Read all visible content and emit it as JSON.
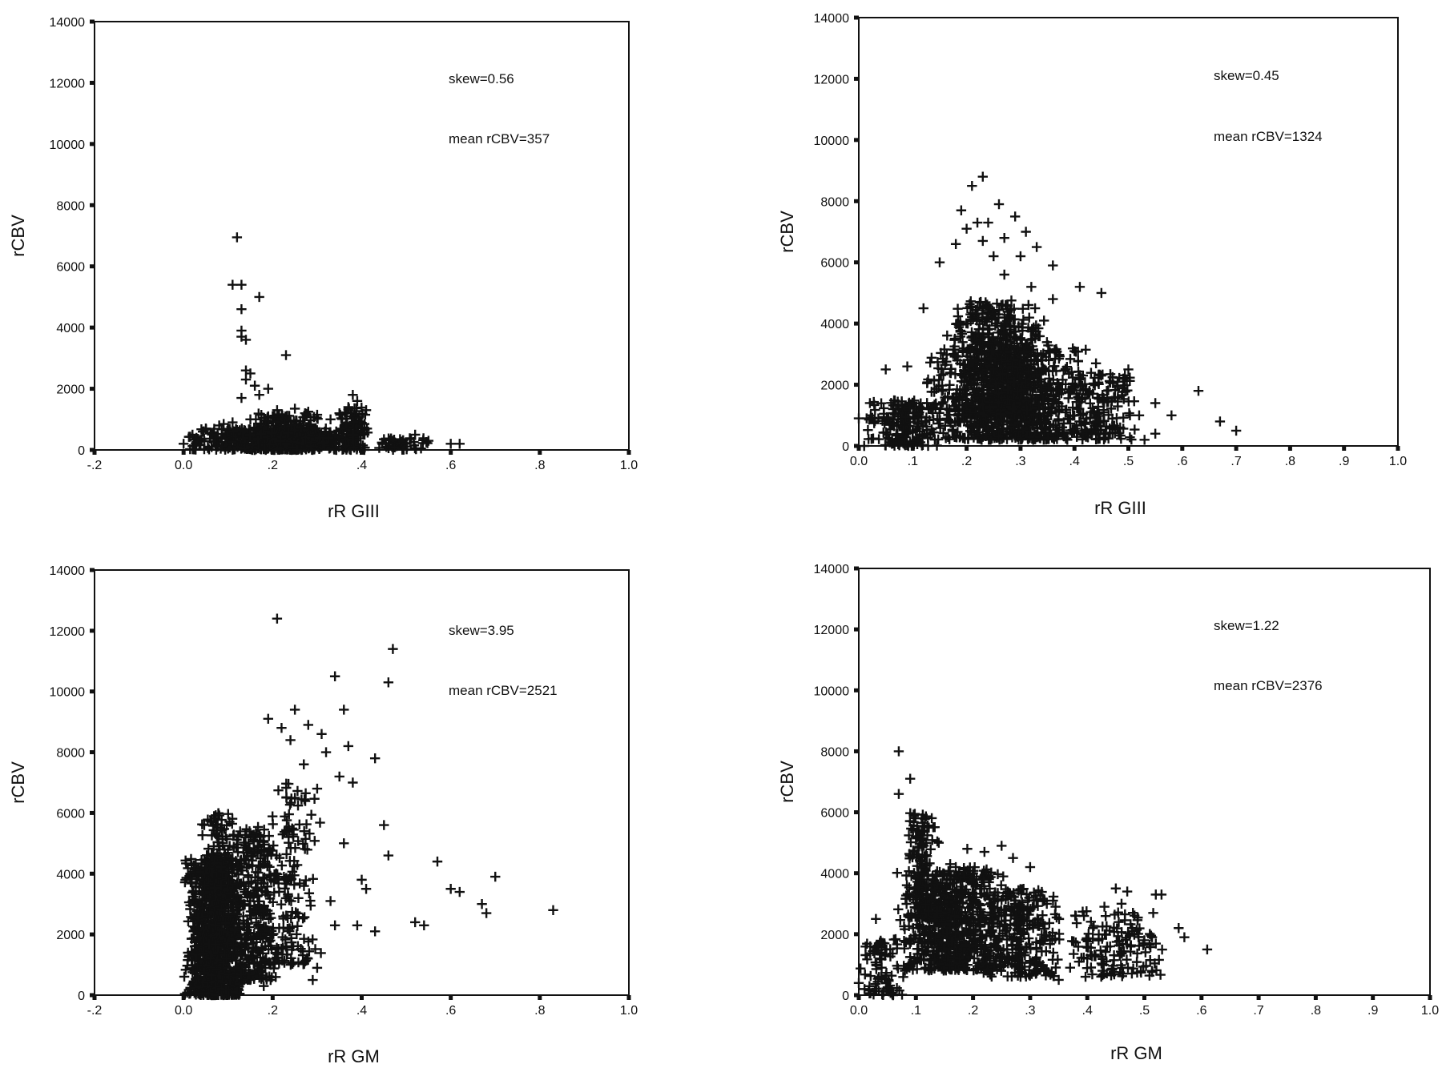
{
  "colors": {
    "ink": "#111111",
    "background": "#ffffff"
  },
  "chart_data": [
    {
      "type": "scatter",
      "marker": "plus",
      "xlabel": "rR GIII",
      "ylabel": "rCBV",
      "xlim": [
        -0.2,
        1.0
      ],
      "ylim": [
        0,
        14000
      ],
      "x_ticks": [
        "-.2",
        "0.0",
        ".2",
        ".4",
        ".6",
        ".8",
        "1.0"
      ],
      "y_ticks": [
        "0",
        "2000",
        "4000",
        "6000",
        "8000",
        "10000",
        "12000",
        "14000"
      ],
      "annotations": [
        "skew=0.56",
        "mean rCBV=357"
      ],
      "grid": false,
      "outliers": [
        [
          0.12,
          6950
        ],
        [
          0.11,
          5400
        ],
        [
          0.13,
          5400
        ],
        [
          0.17,
          5000
        ],
        [
          0.13,
          4600
        ],
        [
          0.13,
          3900
        ],
        [
          0.13,
          3700
        ],
        [
          0.14,
          3600
        ],
        [
          0.23,
          3100
        ],
        [
          0.14,
          2600
        ],
        [
          0.15,
          2500
        ],
        [
          0.14,
          2300
        ],
        [
          0.16,
          2100
        ],
        [
          0.19,
          2000
        ],
        [
          0.17,
          1800
        ],
        [
          0.13,
          1700
        ],
        [
          0.38,
          1800
        ],
        [
          0.39,
          1600
        ],
        [
          0.37,
          1400
        ],
        [
          0.41,
          1300
        ],
        [
          0.52,
          500
        ],
        [
          0.55,
          300
        ],
        [
          0.6,
          200
        ],
        [
          0.62,
          200
        ],
        [
          0.47,
          300
        ],
        [
          0.02,
          500
        ],
        [
          0.05,
          700
        ],
        [
          0.08,
          800
        ],
        [
          0.09,
          850
        ],
        [
          0.15,
          1000
        ],
        [
          0.21,
          1300
        ],
        [
          0.25,
          1350
        ],
        [
          0.3,
          1150
        ],
        [
          0.33,
          1000
        ],
        [
          0.35,
          1200
        ],
        [
          0.28,
          1250
        ],
        [
          0.45,
          350
        ],
        [
          0.0,
          200
        ],
        [
          0.11,
          900
        ],
        [
          0.2,
          1100
        ]
      ],
      "clusters": [
        {
          "x_range": [
            0.0,
            0.42
          ],
          "y_range": [
            0,
            700
          ],
          "count": 520
        },
        {
          "x_range": [
            0.14,
            0.32
          ],
          "y_range": [
            0,
            1200
          ],
          "count": 240
        },
        {
          "x_range": [
            0.34,
            0.42
          ],
          "y_range": [
            0,
            1400
          ],
          "count": 110
        },
        {
          "x_range": [
            0.42,
            0.56
          ],
          "y_range": [
            0,
            400
          ],
          "count": 45
        }
      ]
    },
    {
      "type": "scatter",
      "marker": "plus",
      "xlabel": "rR GIII",
      "ylabel": "rCBV",
      "xlim": [
        0.0,
        1.0
      ],
      "ylim": [
        0,
        14000
      ],
      "x_ticks": [
        "0.0",
        ".1",
        ".2",
        ".3",
        ".4",
        ".5",
        ".6",
        ".7",
        ".8",
        ".9",
        "1.0"
      ],
      "y_ticks": [
        "0",
        "2000",
        "4000",
        "6000",
        "8000",
        "10000",
        "12000",
        "14000"
      ],
      "annotations": [
        "skew=0.45",
        "mean rCBV=1324"
      ],
      "grid": false,
      "outliers": [
        [
          0.23,
          8800
        ],
        [
          0.21,
          8500
        ],
        [
          0.26,
          7900
        ],
        [
          0.19,
          7700
        ],
        [
          0.29,
          7500
        ],
        [
          0.22,
          7300
        ],
        [
          0.24,
          7300
        ],
        [
          0.2,
          7100
        ],
        [
          0.31,
          7000
        ],
        [
          0.23,
          6700
        ],
        [
          0.18,
          6600
        ],
        [
          0.27,
          6800
        ],
        [
          0.33,
          6500
        ],
        [
          0.15,
          6000
        ],
        [
          0.36,
          5900
        ],
        [
          0.41,
          5200
        ],
        [
          0.45,
          5000
        ],
        [
          0.3,
          6200
        ],
        [
          0.36,
          4800
        ],
        [
          0.55,
          1400
        ],
        [
          0.58,
          1000
        ],
        [
          0.63,
          1800
        ],
        [
          0.67,
          800
        ],
        [
          0.7,
          500
        ],
        [
          0.55,
          400
        ],
        [
          0.53,
          200
        ],
        [
          0.05,
          2500
        ],
        [
          0.09,
          2600
        ],
        [
          0.0,
          900
        ],
        [
          0.01,
          0
        ],
        [
          0.5,
          2500
        ],
        [
          0.48,
          2100
        ],
        [
          0.44,
          2700
        ],
        [
          0.4,
          3100
        ],
        [
          0.12,
          4500
        ],
        [
          0.27,
          5600
        ],
        [
          0.32,
          5200
        ],
        [
          0.25,
          6200
        ],
        [
          0.52,
          1000
        ],
        [
          0.46,
          1800
        ]
      ],
      "clusters": [
        {
          "x_range": [
            0.12,
            0.44
          ],
          "y_range": [
            200,
            3200
          ],
          "count": 900
        },
        {
          "x_range": [
            0.16,
            0.36
          ],
          "y_range": [
            1000,
            4800
          ],
          "count": 550
        },
        {
          "x_range": [
            0.01,
            0.16
          ],
          "y_range": [
            0,
            1500
          ],
          "count": 200
        },
        {
          "x_range": [
            0.38,
            0.52
          ],
          "y_range": [
            200,
            2400
          ],
          "count": 160
        }
      ]
    },
    {
      "type": "scatter",
      "marker": "plus",
      "xlabel": "rR GM",
      "ylabel": "rCBV",
      "xlim": [
        -0.2,
        1.0
      ],
      "ylim": [
        0,
        14000
      ],
      "x_ticks": [
        "-.2",
        "0.0",
        ".2",
        ".4",
        ".6",
        ".8",
        "1.0"
      ],
      "y_ticks": [
        "0",
        "2000",
        "4000",
        "6000",
        "8000",
        "10000",
        "12000",
        "14000"
      ],
      "annotations": [
        "skew=3.95",
        "mean rCBV=2521"
      ],
      "grid": false,
      "outliers": [
        [
          0.21,
          12400
        ],
        [
          0.47,
          11400
        ],
        [
          0.34,
          10500
        ],
        [
          0.46,
          10300
        ],
        [
          0.19,
          9100
        ],
        [
          0.25,
          9400
        ],
        [
          0.36,
          9400
        ],
        [
          0.28,
          8900
        ],
        [
          0.31,
          8600
        ],
        [
          0.22,
          8800
        ],
        [
          0.24,
          8400
        ],
        [
          0.32,
          8000
        ],
        [
          0.43,
          7800
        ],
        [
          0.37,
          8200
        ],
        [
          0.35,
          7200
        ],
        [
          0.38,
          7000
        ],
        [
          0.27,
          7600
        ],
        [
          0.3,
          6800
        ],
        [
          0.45,
          5600
        ],
        [
          0.46,
          4600
        ],
        [
          0.57,
          4400
        ],
        [
          0.6,
          3500
        ],
        [
          0.62,
          3400
        ],
        [
          0.7,
          3900
        ],
        [
          0.67,
          3000
        ],
        [
          0.68,
          2700
        ],
        [
          0.83,
          2800
        ],
        [
          0.52,
          2400
        ],
        [
          0.54,
          2300
        ],
        [
          0.4,
          3800
        ],
        [
          0.41,
          3500
        ],
        [
          0.39,
          2300
        ],
        [
          0.43,
          2100
        ],
        [
          0.34,
          2300
        ],
        [
          0.29,
          500
        ],
        [
          0.3,
          900
        ],
        [
          0.18,
          300
        ],
        [
          0.33,
          3100
        ],
        [
          0.25,
          6500
        ],
        [
          0.36,
          5000
        ]
      ],
      "clusters": [
        {
          "x_range": [
            0.0,
            0.14
          ],
          "y_range": [
            0,
            4500
          ],
          "count": 1100
        },
        {
          "x_range": [
            0.1,
            0.22
          ],
          "y_range": [
            500,
            5500
          ],
          "count": 320
        },
        {
          "x_range": [
            0.16,
            0.32
          ],
          "y_range": [
            1000,
            7000
          ],
          "count": 170
        },
        {
          "x_range": [
            0.03,
            0.12
          ],
          "y_range": [
            4000,
            6000
          ],
          "count": 90
        }
      ]
    },
    {
      "type": "scatter",
      "marker": "plus",
      "xlabel": "rR GM",
      "ylabel": "rCBV",
      "xlim": [
        0.0,
        1.0
      ],
      "ylim": [
        0,
        14000
      ],
      "x_ticks": [
        "0.0",
        ".1",
        ".2",
        ".3",
        ".4",
        ".5",
        ".6",
        ".7",
        ".8",
        ".9",
        "1.0"
      ],
      "y_ticks": [
        "0",
        "2000",
        "4000",
        "6000",
        "8000",
        "10000",
        "12000",
        "14000"
      ],
      "annotations": [
        "skew=1.22",
        "mean rCBV=2376"
      ],
      "grid": false,
      "outliers": [
        [
          0.07,
          8000
        ],
        [
          0.09,
          7100
        ],
        [
          0.07,
          6600
        ],
        [
          0.11,
          5800
        ],
        [
          0.12,
          5500
        ],
        [
          0.1,
          5200
        ],
        [
          0.14,
          5000
        ],
        [
          0.19,
          4800
        ],
        [
          0.22,
          4700
        ],
        [
          0.27,
          4500
        ],
        [
          0.3,
          4200
        ],
        [
          0.45,
          3500
        ],
        [
          0.47,
          3400
        ],
        [
          0.52,
          3300
        ],
        [
          0.53,
          3300
        ],
        [
          0.46,
          3000
        ],
        [
          0.48,
          2700
        ],
        [
          0.56,
          2200
        ],
        [
          0.57,
          1900
        ],
        [
          0.61,
          1500
        ],
        [
          0.44,
          1600
        ],
        [
          0.4,
          1200
        ],
        [
          0.37,
          900
        ],
        [
          0.35,
          500
        ],
        [
          0.0,
          400
        ],
        [
          0.01,
          200
        ],
        [
          0.03,
          2500
        ],
        [
          0.02,
          1600
        ],
        [
          0.04,
          900
        ],
        [
          0.06,
          0
        ],
        [
          0.25,
          4900
        ],
        [
          0.16,
          4300
        ],
        [
          0.2,
          4000
        ],
        [
          0.34,
          3100
        ],
        [
          0.38,
          2600
        ],
        [
          0.41,
          2200
        ],
        [
          0.5,
          1800
        ],
        [
          0.43,
          2900
        ],
        [
          0.24,
          1200
        ],
        [
          0.31,
          700
        ]
      ],
      "clusters": [
        {
          "x_range": [
            0.06,
            0.26
          ],
          "y_range": [
            800,
            4200
          ],
          "count": 700
        },
        {
          "x_range": [
            0.08,
            0.14
          ],
          "y_range": [
            2500,
            6000
          ],
          "count": 160
        },
        {
          "x_range": [
            0.2,
            0.36
          ],
          "y_range": [
            600,
            3500
          ],
          "count": 300
        },
        {
          "x_range": [
            0.36,
            0.54
          ],
          "y_range": [
            600,
            2800
          ],
          "count": 140
        },
        {
          "x_range": [
            0.0,
            0.08
          ],
          "y_range": [
            0,
            1800
          ],
          "count": 80
        }
      ]
    }
  ]
}
